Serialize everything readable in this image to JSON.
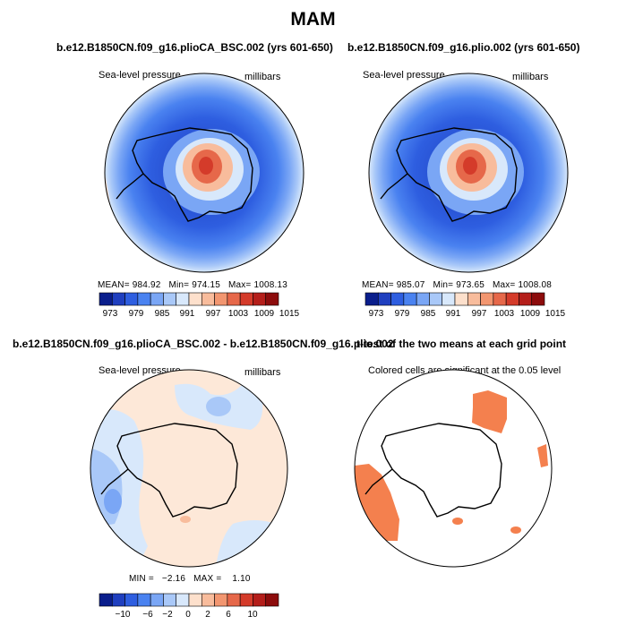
{
  "page_title": "MAM",
  "chart_data": [
    {
      "type": "heatmap",
      "projection": "south-polar-stereographic",
      "title": "b.e12.B1850CN.f09_g16.plioCA_BSC.002 (yrs 601-650)",
      "left_label": "Sea-level pressure",
      "right_label": "millibars",
      "stats": {
        "mean": "984.92",
        "min": "974.15",
        "max": "1008.13",
        "mean_label": "MEAN=",
        "min_label": "Min=",
        "max_label": "Max="
      },
      "colorbar_levels": [
        "973",
        "979",
        "985",
        "991",
        "997",
        "1003",
        "1009",
        "1015"
      ],
      "colorbar_colors": [
        "#0a1e8c",
        "#1f3fbf",
        "#2e5ee0",
        "#4a82f0",
        "#7aa6f5",
        "#a9c8f8",
        "#d8e8fb",
        "#fde0cc",
        "#f8bc9c",
        "#f29670",
        "#e6684a",
        "#d43b2a",
        "#b41e1a",
        "#8c0c0c"
      ]
    },
    {
      "type": "heatmap",
      "projection": "south-polar-stereographic",
      "title": "b.e12.B1850CN.f09_g16.plio.002 (yrs 601-650)",
      "left_label": "Sea-level pressure",
      "right_label": "millibars",
      "stats": {
        "mean": "985.07",
        "min": "973.65",
        "max": "1008.08",
        "mean_label": "MEAN=",
        "min_label": "Min=",
        "max_label": "Max="
      },
      "colorbar_levels": [
        "973",
        "979",
        "985",
        "991",
        "997",
        "1003",
        "1009",
        "1015"
      ],
      "colorbar_colors": [
        "#0a1e8c",
        "#1f3fbf",
        "#2e5ee0",
        "#4a82f0",
        "#7aa6f5",
        "#a9c8f8",
        "#d8e8fb",
        "#fde0cc",
        "#f8bc9c",
        "#f29670",
        "#e6684a",
        "#d43b2a",
        "#b41e1a",
        "#8c0c0c"
      ]
    },
    {
      "type": "heatmap",
      "projection": "south-polar-stereographic",
      "title": "b.e12.B1850CN.f09_g16.plioCA_BSC.002 - b.e12.B1850CN.f09_g16.plio.002",
      "left_label": "Sea-level pressure",
      "right_label": "millibars",
      "stats": {
        "min": "−2.16",
        "max": "1.10",
        "min_label": "MIN =",
        "max_label": "MAX ="
      },
      "colorbar_levels": [
        "−10",
        "−6",
        "−2",
        "0",
        "2",
        "6",
        "10"
      ],
      "colorbar_colors": [
        "#0a1e8c",
        "#1f3fbf",
        "#2e5ee0",
        "#4a82f0",
        "#7aa6f5",
        "#a9c8f8",
        "#d8e8fb",
        "#fde0cc",
        "#f8bc9c",
        "#f29670",
        "#e6684a",
        "#d43b2a",
        "#b41e1a",
        "#8c0c0c"
      ]
    },
    {
      "type": "heatmap",
      "projection": "south-polar-stereographic",
      "title": "t-test of the two means at each grid point",
      "left_label": "Colored cells are significant at the 0.05 level",
      "significance_level": 0.05,
      "significant_color": "#f4804e"
    }
  ]
}
